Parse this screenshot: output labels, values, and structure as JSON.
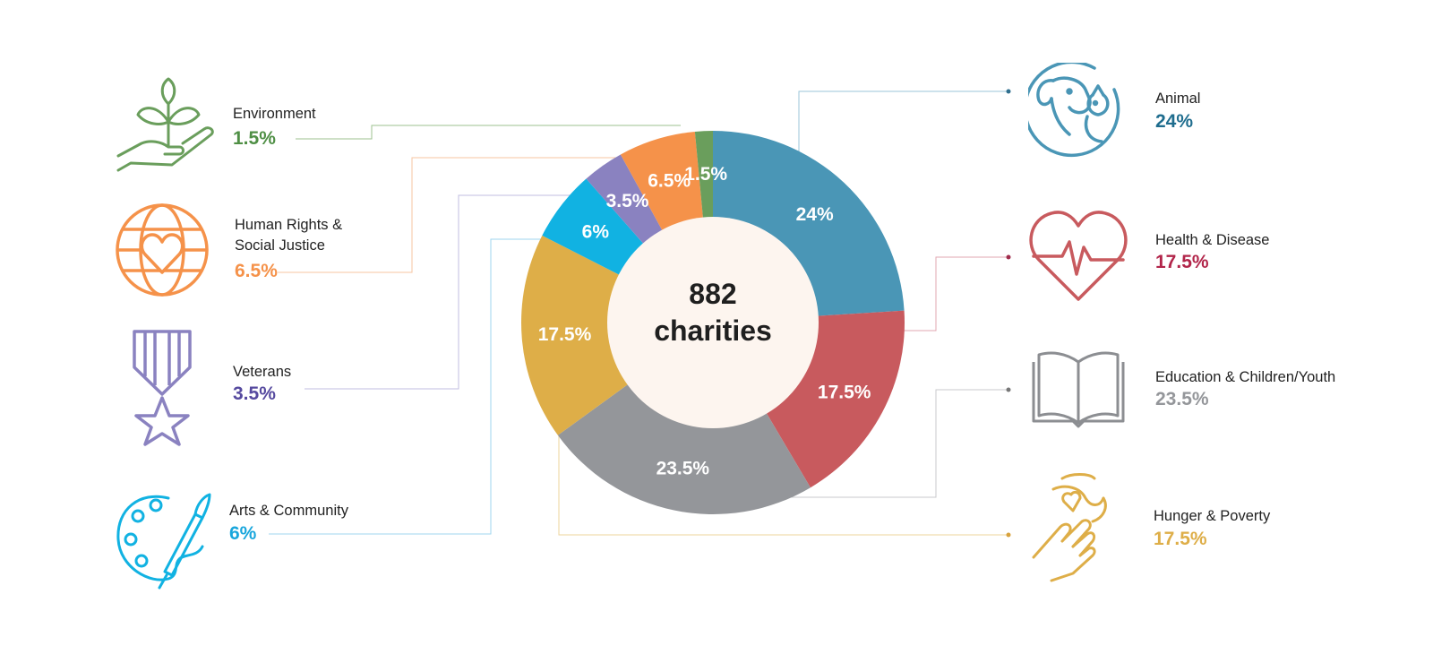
{
  "center": {
    "line1": "882",
    "line2": "charities"
  },
  "colors": {
    "animal": "#4a96b6",
    "health": "#c85a5e",
    "education": "#94969a",
    "hunger": "#deae48",
    "arts": "#11b2e2",
    "veterans": "#8a82c0",
    "human_rights": "#f5924a",
    "environment": "#6a9e5c"
  },
  "categories": {
    "environment": {
      "label": "Environment",
      "pct": "1.5%",
      "color": "#4f8f45",
      "icon": "plant-in-hand-icon"
    },
    "human_rights": {
      "label_line1": "Human Rights &",
      "label_line2": "Social Justice",
      "pct": "6.5%",
      "color": "#f5924a",
      "icon": "globe-heart-icon"
    },
    "veterans": {
      "label": "Veterans",
      "pct": "3.5%",
      "color": "#564a9f",
      "icon": "medal-star-icon"
    },
    "arts": {
      "label": "Arts & Community",
      "pct": "6%",
      "color": "#19a6dc",
      "icon": "palette-brush-icon"
    },
    "animal": {
      "label": "Animal",
      "pct": "24%",
      "color": "#1f6d8e",
      "icon": "dog-cat-icon"
    },
    "health": {
      "label": "Health & Disease",
      "pct": "17.5%",
      "color": "#b2254a",
      "icon": "heart-pulse-icon"
    },
    "education": {
      "label": "Education & Children/Youth",
      "pct": "23.5%",
      "color": "#94969a",
      "icon": "open-book-icon"
    },
    "hunger": {
      "label": "Hunger & Poverty",
      "pct": "17.5%",
      "color": "#deae48",
      "icon": "hands-heart-icon"
    }
  },
  "chart_data": {
    "type": "pie",
    "total_label": "882 charities",
    "categories": [
      "Animal",
      "Health & Disease",
      "Education & Children/Youth",
      "Hunger & Poverty",
      "Arts & Community",
      "Veterans",
      "Human Rights & Social Justice",
      "Environment"
    ],
    "values": [
      24,
      17.5,
      23.5,
      17.5,
      6,
      3.5,
      6.5,
      1.5
    ],
    "value_labels": [
      "24%",
      "17.5%",
      "23.5%",
      "17.5%",
      "6%",
      "3.5%",
      "6.5%",
      "1.5%"
    ],
    "colors": [
      "#4a96b6",
      "#c85a5e",
      "#94969a",
      "#deae48",
      "#11b2e2",
      "#8a82c0",
      "#f5924a",
      "#6a9e5c"
    ],
    "donut": true
  }
}
